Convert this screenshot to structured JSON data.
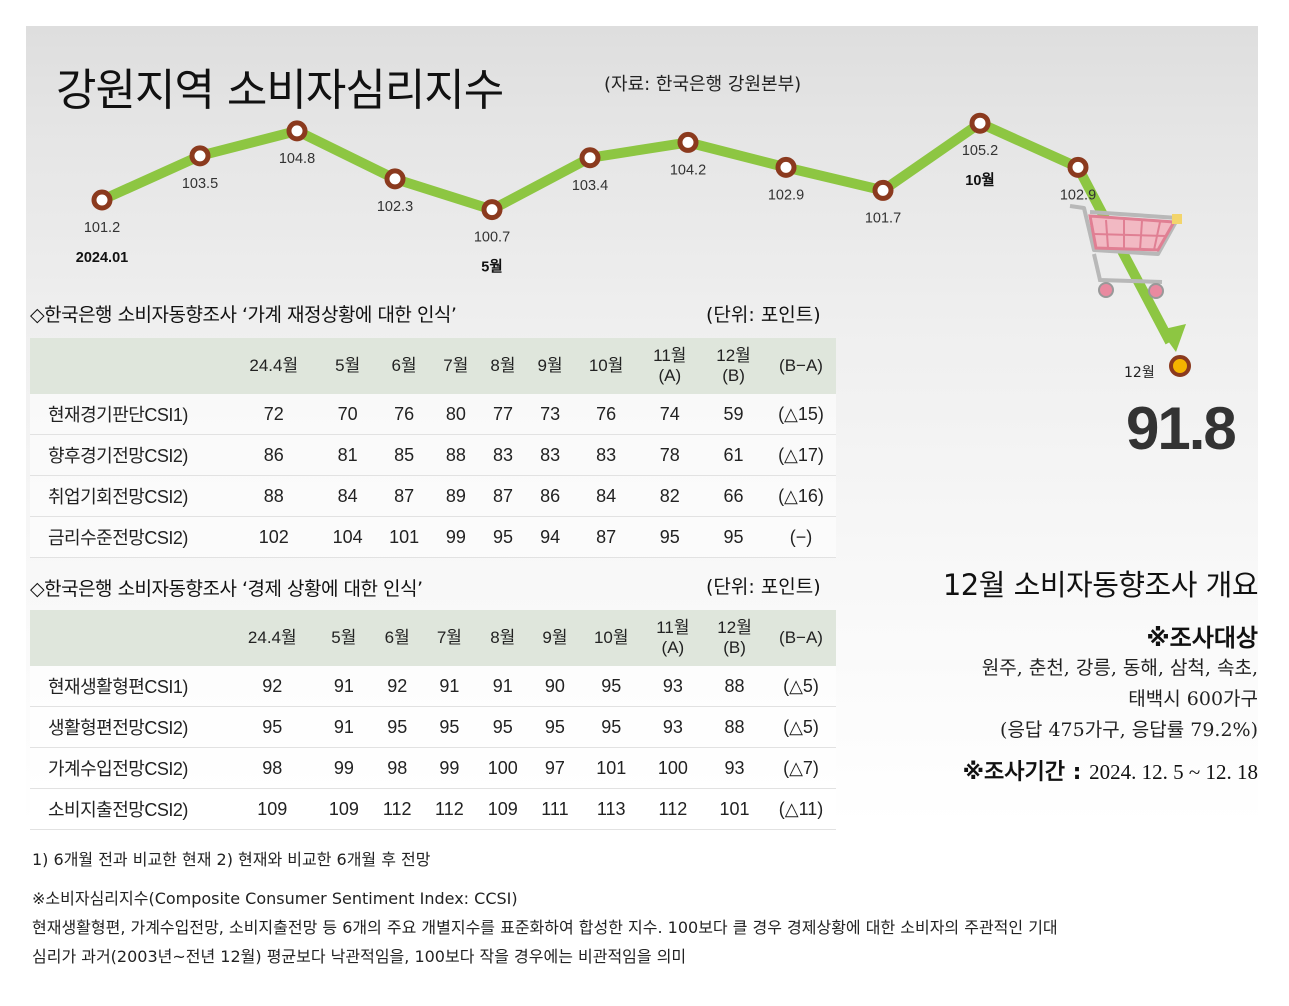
{
  "header": {
    "title": "강원지역 소비자심리지수",
    "source": "(자료: 한국은행 강원본부)"
  },
  "colors": {
    "line": "#8dc642",
    "marker_ring": "#8b3a1e",
    "final_marker": "#f5b400",
    "table_header_bg": "#dfe6dc"
  },
  "chart_data": {
    "type": "line",
    "title": "강원지역 소비자심리지수",
    "x": [
      "2024.01",
      "",
      "",
      "",
      "5월",
      "",
      "",
      "",
      "",
      "10월",
      "",
      "12월"
    ],
    "values": [
      101.2,
      103.5,
      104.8,
      102.3,
      100.7,
      103.4,
      104.2,
      102.9,
      101.7,
      105.2,
      102.9,
      91.8
    ],
    "value_labels": [
      "101.2",
      "103.5",
      "104.8",
      "102.3",
      "100.7",
      "103.4",
      "104.2",
      "102.9",
      "101.7",
      "105.2",
      "102.9",
      "91.8"
    ],
    "highlight": {
      "label": "12월",
      "value": "91.8"
    }
  },
  "table1": {
    "title": "◇한국은행 소비자동향조사 ‘가계 재정상황에 대한 인식’",
    "unit": "(단위: 포인트)",
    "headers": [
      "",
      "24.4월",
      "5월",
      "6월",
      "7월",
      "8월",
      "9월",
      "10월",
      "11월\n(A)",
      "12월\n(B)",
      "(B−A)"
    ],
    "rows": [
      [
        "현재경기판단CSI1)",
        "72",
        "70",
        "76",
        "80",
        "77",
        "73",
        "76",
        "74",
        "59",
        "(△15)"
      ],
      [
        "향후경기전망CSI2)",
        "86",
        "81",
        "85",
        "88",
        "83",
        "83",
        "83",
        "78",
        "61",
        "(△17)"
      ],
      [
        "취업기회전망CSI2)",
        "88",
        "84",
        "87",
        "89",
        "87",
        "86",
        "84",
        "82",
        "66",
        "(△16)"
      ],
      [
        "금리수준전망CSI2)",
        "102",
        "104",
        "101",
        "99",
        "95",
        "94",
        "87",
        "95",
        "95",
        "(−)"
      ]
    ]
  },
  "table2": {
    "title": "◇한국은행 소비자동향조사 ‘경제 상황에 대한 인식’",
    "unit": "(단위: 포인트)",
    "headers": [
      "",
      "24.4월",
      "5월",
      "6월",
      "7월",
      "8월",
      "9월",
      "10월",
      "11월\n(A)",
      "12월\n(B)",
      "(B−A)"
    ],
    "rows": [
      [
        "현재생활형편CSI1)",
        "92",
        "91",
        "92",
        "91",
        "91",
        "90",
        "95",
        "93",
        "88",
        "(△5)"
      ],
      [
        "생활형편전망CSI2)",
        "95",
        "91",
        "95",
        "95",
        "95",
        "95",
        "95",
        "93",
        "88",
        "(△5)"
      ],
      [
        "가계수입전망CSI2)",
        "98",
        "99",
        "98",
        "99",
        "100",
        "97",
        "101",
        "100",
        "93",
        "(△7)"
      ],
      [
        "소비지출전망CSI2)",
        "109",
        "109",
        "112",
        "112",
        "109",
        "111",
        "113",
        "112",
        "101",
        "(△11)"
      ]
    ]
  },
  "summary": {
    "title": "12월 소비자동향조사 개요",
    "target_head": "※조사대상",
    "target_lines": [
      "원주, 춘천, 강릉, 동해, 삼척, 속초,",
      "태백시 600가구",
      "(응답 475가구, 응답률 79.2%)"
    ],
    "period_head": "※조사기간 :",
    "period_value": "2024. 12. 5 ~ 12. 18"
  },
  "footnotes": {
    "note1": "1) 6개월 전과 비교한 현재 2) 현재와 비교한 6개월 후 전망",
    "note2_title": "※소비자심리지수(Composite Consumer Sentiment Index: CCSI)",
    "note2_line1": "현재생활형편, 가계수입전망, 소비지출전망 등 6개의 주요 개별지수를 표준화하여 합성한 지수. 100보다 클 경우 경제상황에 대한 소비자의 주관적인 기대",
    "note2_line2": "심리가 과거(2003년~전년 12월) 평균보다 낙관적임을, 100보다 작을 경우에는 비관적임을 의미"
  }
}
